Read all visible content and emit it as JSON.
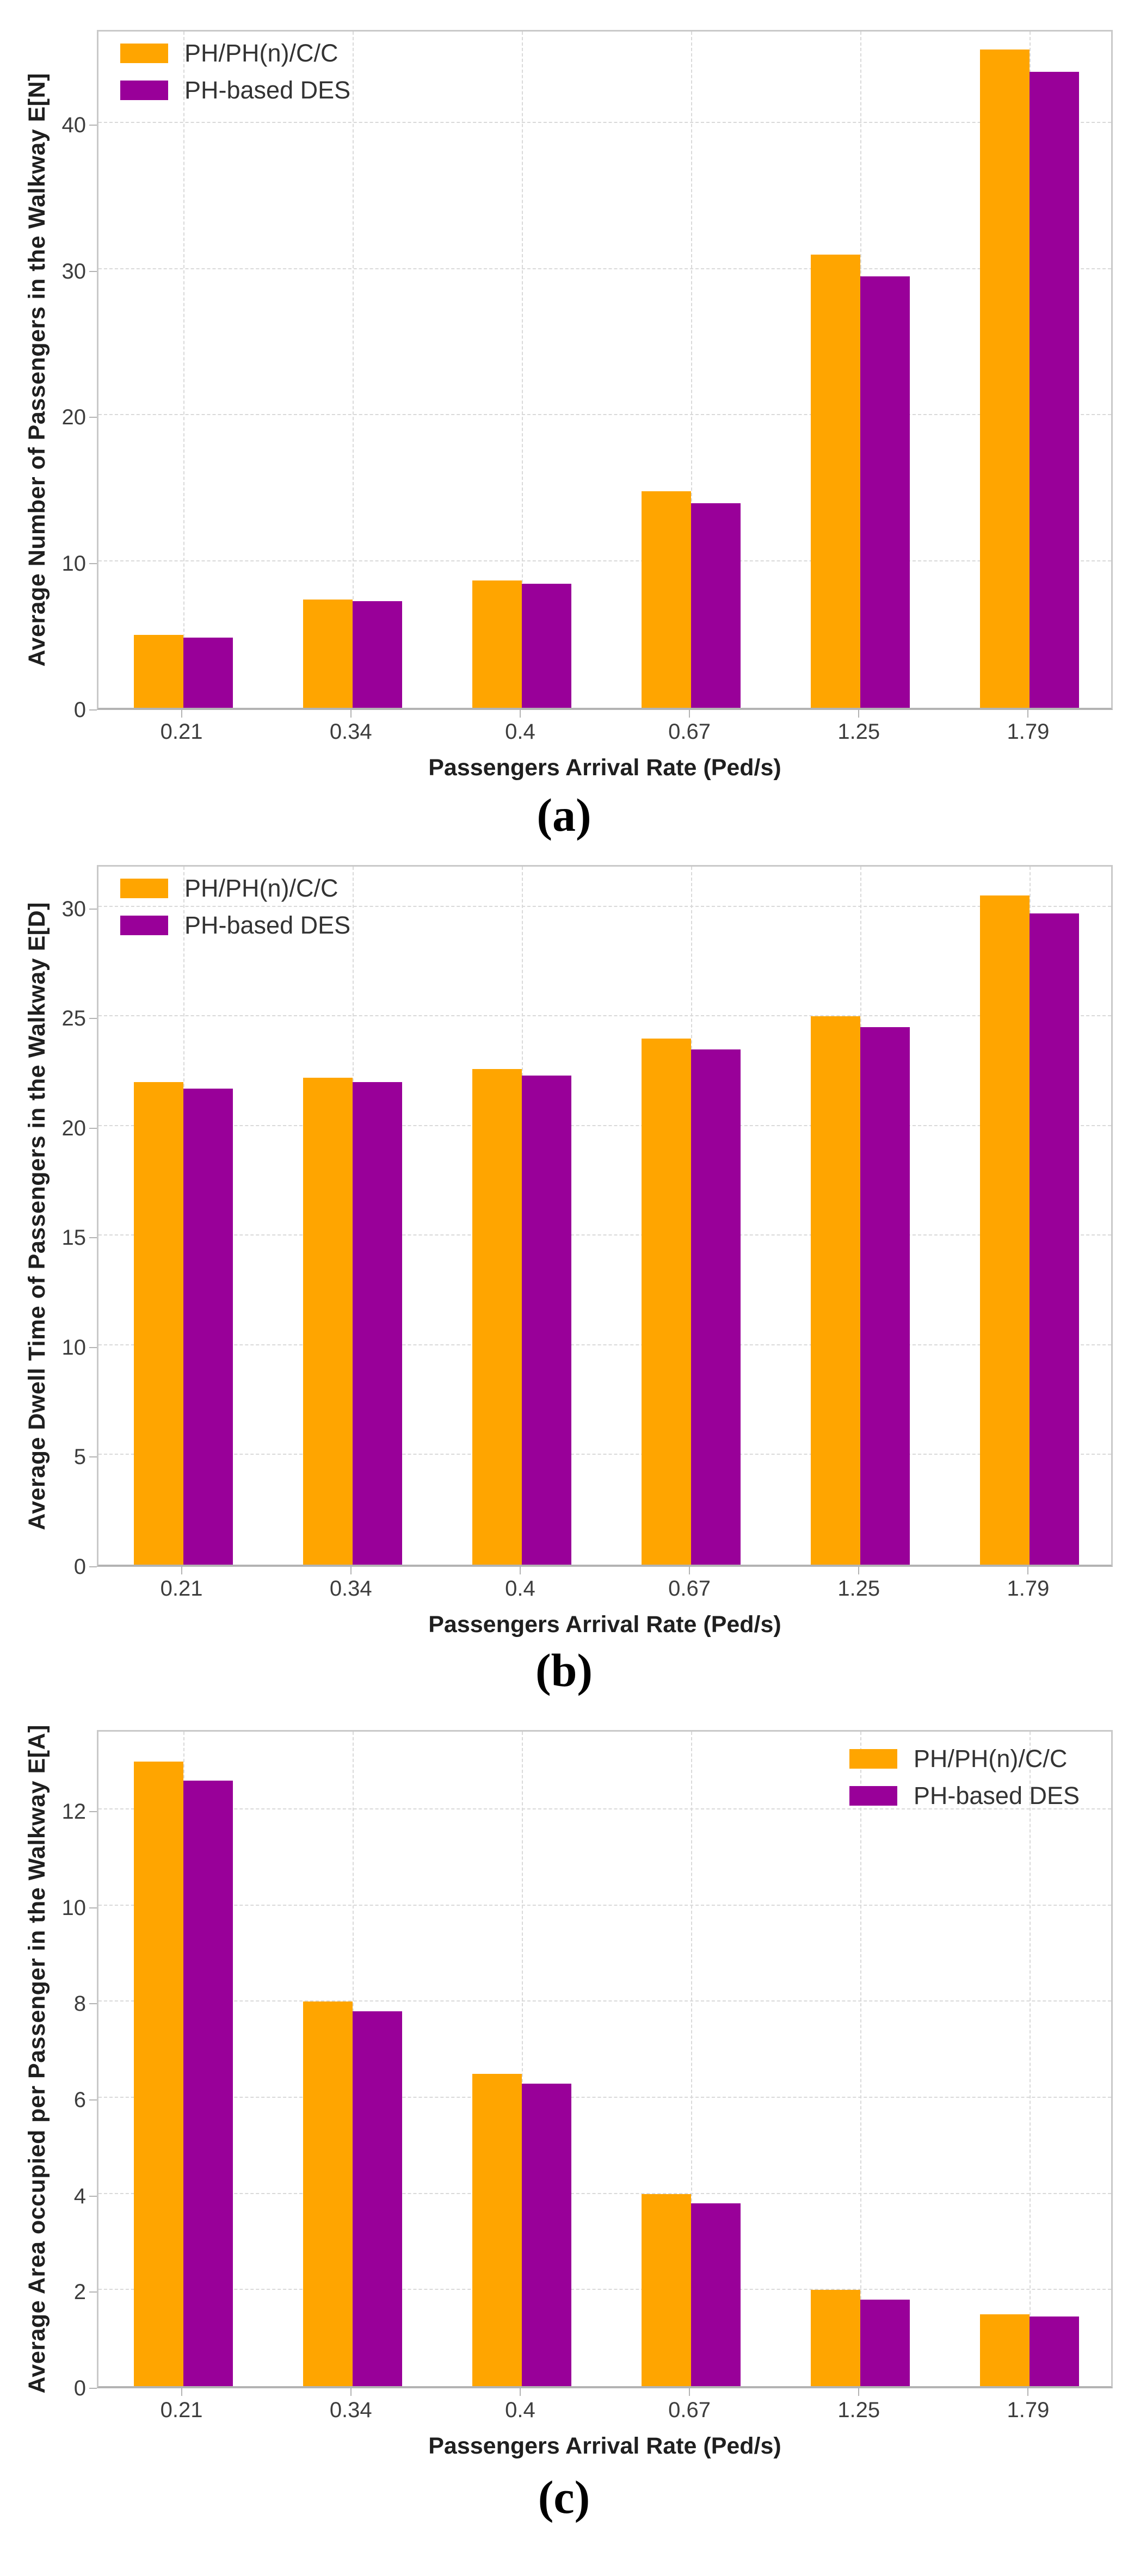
{
  "figure": {
    "background": "#ffffff",
    "series_colors": {
      "model": "#FFA500",
      "simulation": "#990099"
    },
    "grid_color": "#d9d9d9",
    "axis_color": "#b3b3b3"
  },
  "chart_data": [
    {
      "type": "bar",
      "caption": "(a)",
      "xlabel": "Passengers Arrival Rate (Ped/s)",
      "ylabel": "Average Number of Passengers in the Walkway E[N]",
      "categories": [
        "0.21",
        "0.34",
        "0.4",
        "0.67",
        "1.25",
        "1.79"
      ],
      "series": [
        {
          "name": "PH/PH(n)/C/C",
          "color": "#FFA500",
          "values": [
            5.0,
            7.4,
            8.7,
            14.8,
            31.0,
            45.0
          ]
        },
        {
          "name": "PH-based DES",
          "color": "#990099",
          "values": [
            4.8,
            7.3,
            8.5,
            14.0,
            29.5,
            43.5
          ]
        }
      ],
      "ylim": [
        0,
        46.5
      ],
      "yticks": [
        0,
        10,
        20,
        30,
        40
      ],
      "grid": "dashed",
      "legend_position": "upper-left"
    },
    {
      "type": "bar",
      "caption": "(b)",
      "xlabel": "Passengers Arrival Rate (Ped/s)",
      "ylabel": "Average Dwell Time of Passengers in the Walkway E[D]",
      "categories": [
        "0.21",
        "0.34",
        "0.4",
        "0.67",
        "1.25",
        "1.79"
      ],
      "series": [
        {
          "name": "PH/PH(n)/C/C",
          "color": "#FFA500",
          "values": [
            22.0,
            22.2,
            22.6,
            24.0,
            25.0,
            30.5
          ]
        },
        {
          "name": "PH-based DES",
          "color": "#990099",
          "values": [
            21.7,
            22.0,
            22.3,
            23.5,
            24.5,
            29.7
          ]
        }
      ],
      "ylim": [
        0,
        32
      ],
      "yticks": [
        0,
        5,
        10,
        15,
        20,
        25,
        30
      ],
      "grid": "dashed",
      "legend_position": "upper-left"
    },
    {
      "type": "bar",
      "caption": "(c)",
      "xlabel": "Passengers Arrival Rate (Ped/s)",
      "ylabel": "Average Area occupied per Passenger in the Walkway E[A]",
      "categories": [
        "0.21",
        "0.34",
        "0.4",
        "0.67",
        "1.25",
        "1.79"
      ],
      "series": [
        {
          "name": "PH/PH(n)/C/C",
          "color": "#FFA500",
          "values": [
            13.0,
            8.0,
            6.5,
            4.0,
            2.0,
            1.5
          ]
        },
        {
          "name": "PH-based DES",
          "color": "#990099",
          "values": [
            12.6,
            7.8,
            6.3,
            3.8,
            1.8,
            1.45
          ]
        }
      ],
      "ylim": [
        0,
        13.7
      ],
      "yticks": [
        0,
        2,
        4,
        6,
        8,
        10,
        12
      ],
      "grid": "dashed",
      "legend_position": "upper-right"
    }
  ]
}
